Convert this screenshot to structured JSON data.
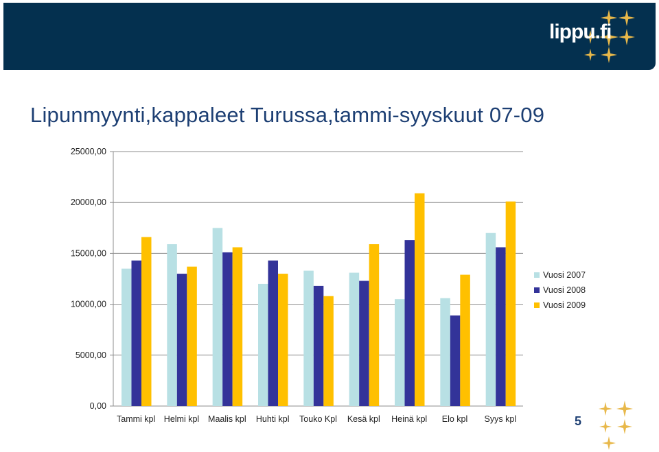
{
  "header": {
    "logo_text": "lippu.fi"
  },
  "slide": {
    "title": "Lipunmyynti,kappaleet Turussa,tammi-syyskuut 07-09",
    "page_number": "5"
  },
  "colors": {
    "banner": "#04304f",
    "series": [
      "#b8e0e4",
      "#333399",
      "#ffc000"
    ],
    "star": "#e8b84a"
  },
  "chart_data": {
    "type": "bar",
    "categories": [
      "Tammi kpl",
      "Helmi kpl",
      "Maalis kpl",
      "Huhti kpl",
      "Touko Kpl",
      "Kesä kpl",
      "Heinä kpl",
      "Elo kpl",
      "Syys kpl"
    ],
    "series": [
      {
        "name": "Vuosi 2007",
        "values": [
          13500,
          15900,
          17500,
          12000,
          13300,
          13100,
          10500,
          10600,
          17000
        ]
      },
      {
        "name": "Vuosi 2008",
        "values": [
          14300,
          13000,
          15100,
          14300,
          11800,
          12300,
          16300,
          8900,
          15600
        ]
      },
      {
        "name": "Vuosi 2009",
        "values": [
          16600,
          13700,
          15600,
          13000,
          10800,
          15900,
          20900,
          12900,
          20100
        ]
      }
    ],
    "yticks": [
      "0,00",
      "5000,00",
      "10000,00",
      "15000,00",
      "20000,00",
      "25000,00"
    ],
    "ylim": [
      0,
      25000
    ],
    "grid": true,
    "legend_position": "right"
  }
}
